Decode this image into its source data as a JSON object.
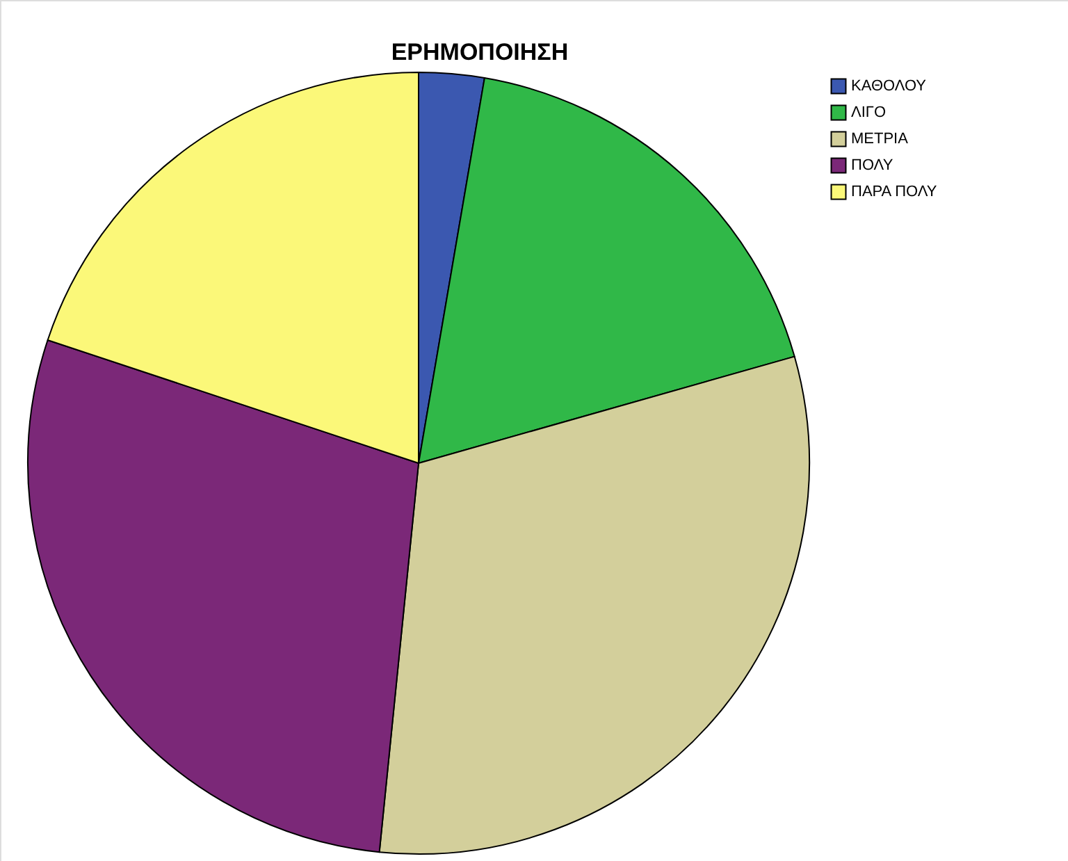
{
  "chart_data": {
    "type": "pie",
    "title": "ΕΡΗΜΟΠΟΙΗΣΗ",
    "categories": [
      "ΚΑΘΟΛΟΥ",
      "ΛΙΓΟ",
      "ΜΕΤΡΙΑ",
      "ΠΟΛΥ",
      "ΠΑΡΑ ΠΟΛΥ"
    ],
    "values": [
      2.7,
      17.9,
      31.0,
      28.5,
      19.9
    ],
    "colors": [
      "#3b58b0",
      "#30b848",
      "#d3cf9b",
      "#7b2878",
      "#fbf879"
    ],
    "legend": "top right"
  }
}
